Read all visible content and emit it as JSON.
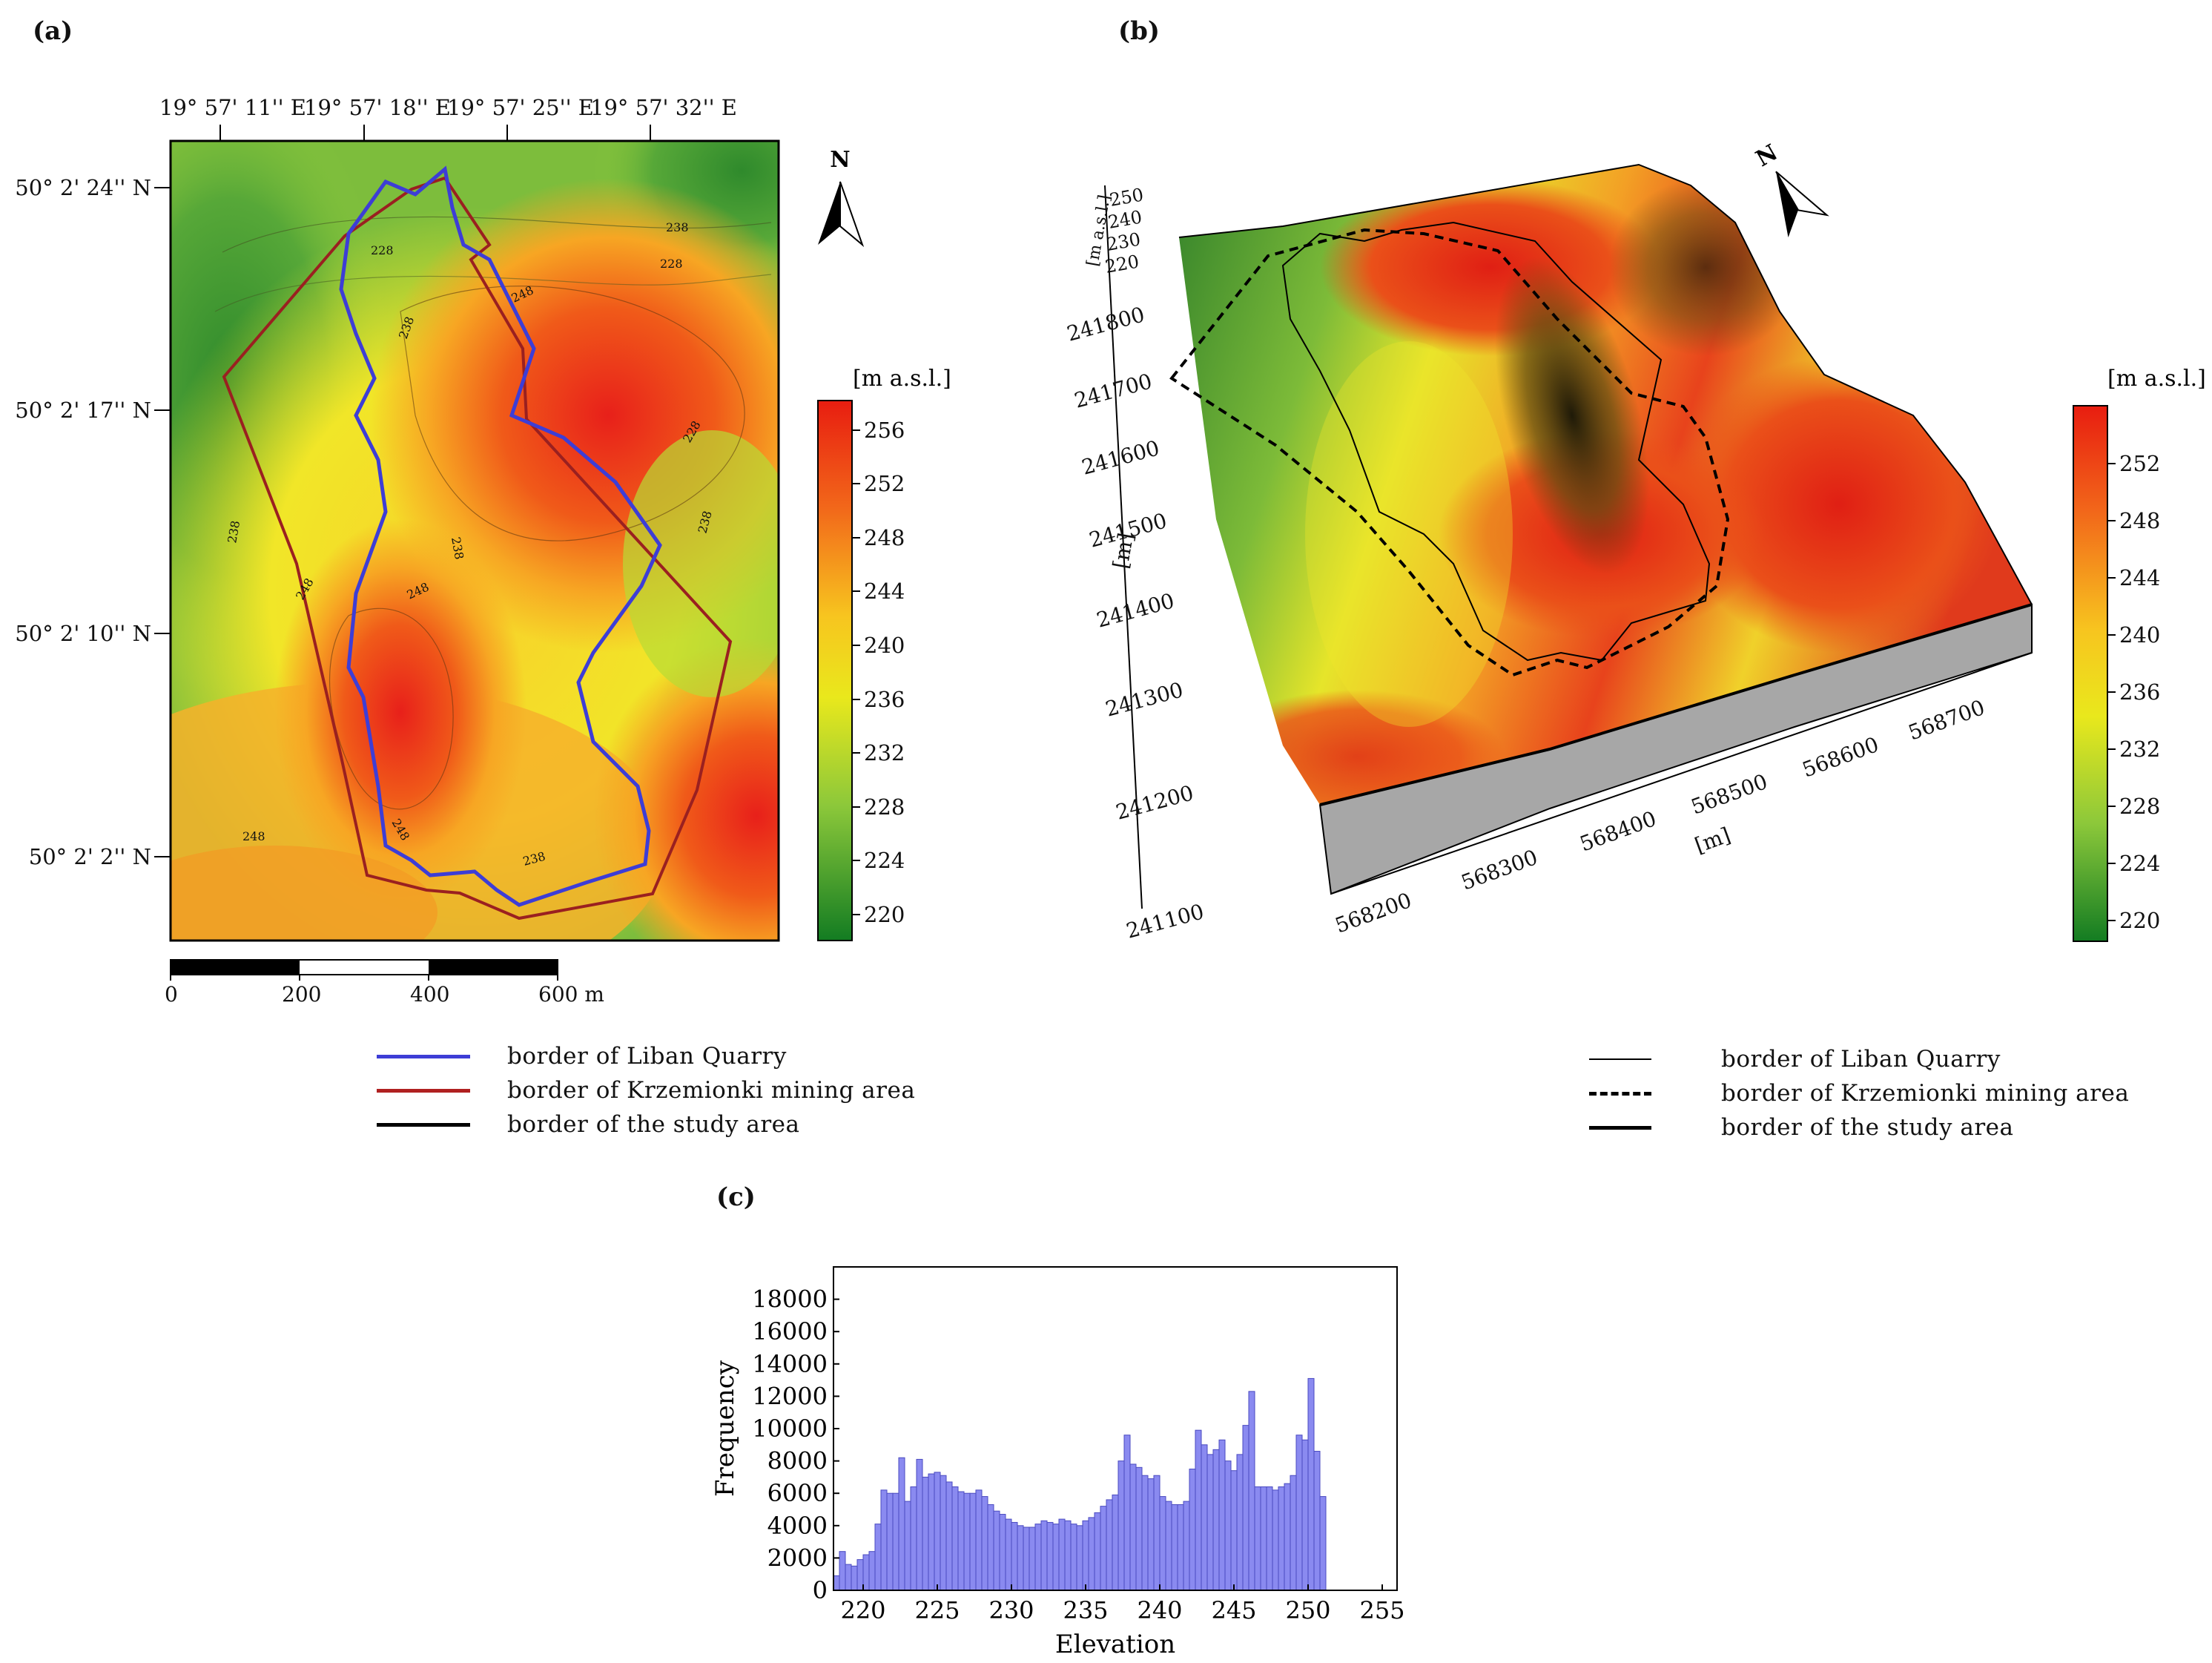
{
  "panels": {
    "a": "(a)",
    "b": "(b)",
    "c": "(c)"
  },
  "map_a": {
    "top_coords": [
      "19° 57' 11'' E",
      "19° 57' 18'' E",
      "19° 57' 25'' E",
      "19° 57' 32'' E"
    ],
    "left_coords": [
      "50° 2' 24'' N",
      "50° 2' 17'' N",
      "50° 2' 10'' N",
      "50° 2' 2'' N"
    ],
    "north": "N",
    "colorbar_title": "[m a.s.l.]",
    "colorbar_ticks": [
      "256",
      "252",
      "248",
      "244",
      "240",
      "236",
      "232",
      "228",
      "224",
      "220"
    ],
    "scale_labels": [
      "0",
      "200",
      "400",
      "600 m"
    ],
    "contour_labels": [
      "228",
      "238",
      "248",
      "238",
      "228",
      "238",
      "248",
      "248",
      "238",
      "228",
      "238",
      "248",
      "248",
      "238",
      "248",
      "248"
    ]
  },
  "map_b": {
    "north": "N",
    "z_unit": "[m a.s.l.]",
    "z_ticks": [
      "250",
      "240",
      "230",
      "220"
    ],
    "y_ticks": [
      "241800",
      "241700",
      "241600",
      "241500",
      "241400",
      "241300",
      "241200",
      "241100"
    ],
    "y_unit": "[m]",
    "x_ticks": [
      "568200",
      "568300",
      "568400",
      "568500",
      "568600",
      "568700"
    ],
    "x_unit": "[m]",
    "colorbar_title": "[m a.s.l.]",
    "colorbar_ticks": [
      "252",
      "248",
      "244",
      "240",
      "236",
      "232",
      "228",
      "224",
      "220"
    ]
  },
  "legend_a": [
    {
      "label": "border of Liban Quarry",
      "color": "#3d3dd6",
      "style": "solid"
    },
    {
      "label": "border of Krzemionki mining area",
      "color": "#b02020",
      "style": "solid"
    },
    {
      "label": "border of the study area",
      "color": "#000000",
      "style": "solid"
    }
  ],
  "legend_b": [
    {
      "label": "border of Liban Quarry",
      "style": "thin"
    },
    {
      "label": "border of Krzemionki mining area",
      "style": "dashed"
    },
    {
      "label": "border of the study area",
      "style": "thick"
    }
  ],
  "chart_data": {
    "type": "bar",
    "title": "",
    "xlabel": "Elevation",
    "ylabel": "Frequency",
    "xlim": [
      218,
      256
    ],
    "ylim": [
      0,
      20000
    ],
    "xticks": [
      220,
      225,
      230,
      235,
      240,
      245,
      250,
      255
    ],
    "yticks": [
      0,
      2000,
      4000,
      6000,
      8000,
      10000,
      12000,
      14000,
      16000,
      18000
    ],
    "bin_start": 218,
    "bin_width": 0.4,
    "values": [
      900,
      2400,
      1600,
      1500,
      1900,
      2200,
      2400,
      4100,
      6200,
      6000,
      6000,
      8200,
      5500,
      6400,
      8100,
      7000,
      7200,
      7300,
      7100,
      6700,
      6400,
      6100,
      6000,
      6000,
      6200,
      5800,
      5300,
      4900,
      4700,
      4400,
      4200,
      4000,
      3900,
      3900,
      4100,
      4300,
      4200,
      4100,
      4400,
      4300,
      4100,
      4000,
      4300,
      4500,
      4800,
      5200,
      5600,
      5900,
      8000,
      9600,
      7800,
      7600,
      7100,
      6900,
      7100,
      5800,
      5500,
      5300,
      5300,
      5500,
      7500,
      9900,
      9000,
      8400,
      8700,
      9300,
      8000,
      7400,
      8400,
      10200,
      12300,
      6400,
      6400,
      6400,
      6200,
      6400,
      6600,
      7100,
      9600,
      9300,
      13100,
      8600,
      5800
    ],
    "bar_color": "#8a8af0"
  }
}
